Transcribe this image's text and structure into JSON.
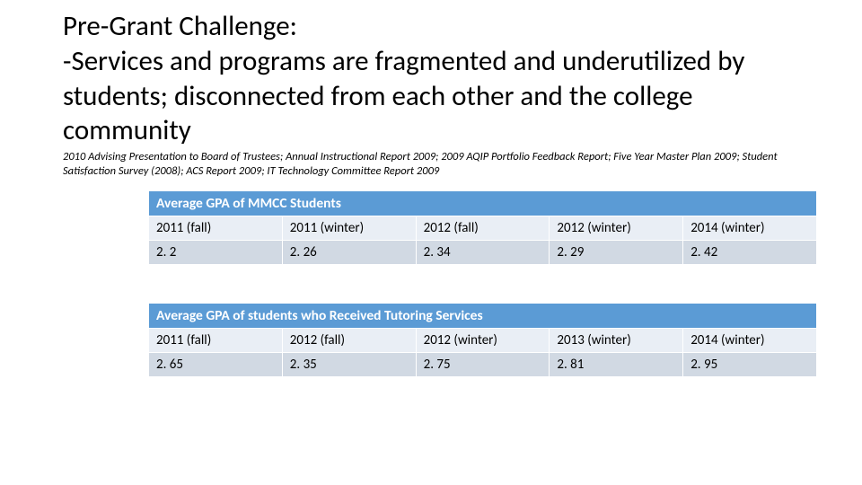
{
  "title_line1": "Pre-Grant Challenge:",
  "title_line2": "-Services and programs are fragmented and underutilized by students;  disconnected from each other and the college community",
  "citation": "2010 Advising Presentation to Board of Trustees; Annual Instructional Report 2009; 2009 AQIP Portfolio Feedback Report; Five Year Master Plan 2009; Student Satisfaction Survey (2008); ACS Report 2009; IT Technology Committee Report 2009",
  "table1": {
    "header": "Average GPA of MMCC Students",
    "columns": [
      "2011 (fall)",
      "2011 (winter)",
      "2012 (fall)",
      "2012 (winter)",
      "2014 (winter)"
    ],
    "values": [
      "2. 2",
      "2. 26",
      "2. 34",
      "2. 29",
      "2. 42"
    ]
  },
  "table2": {
    "header": "Average GPA of students who Received Tutoring Services",
    "columns": [
      "2011 (fall)",
      "2012 (fall)",
      "2012 (winter)",
      "2013 (winter)",
      "2014 (winter)"
    ],
    "values": [
      "2. 65",
      "2. 35",
      "2. 75",
      "2. 81",
      "2. 95"
    ]
  },
  "colors": {
    "header_bg": "#5b9bd5",
    "row_alt1": "#e9eef5",
    "row_alt2": "#d1d9e3",
    "text": "#000000",
    "header_text": "#ffffff",
    "page_bg": "#ffffff"
  },
  "fonts": {
    "title_size_pt": 24,
    "cite_size_pt": 9,
    "table_size_pt": 11
  }
}
